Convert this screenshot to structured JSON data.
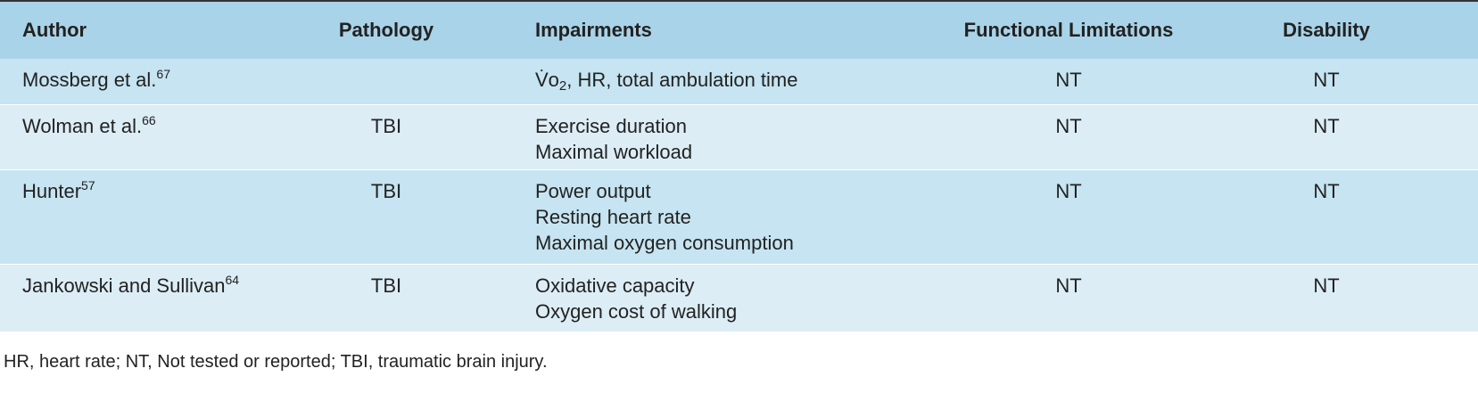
{
  "header": {
    "columns": [
      "Author",
      "Pathology",
      "Impairments",
      "Functional Limitations",
      "Disability"
    ]
  },
  "table": {
    "rows": [
      {
        "author": "Mossberg et al.",
        "ref": "67",
        "impairments": [
          [
            {
              "text": "V̇o"
            },
            {
              "text": "2",
              "sub": true
            },
            {
              "text": ", HR, total ambulation time"
            }
          ]
        ],
        "functional": "NT",
        "disability": "NT"
      },
      {
        "author": "Wolman et al.",
        "ref": "66",
        "pathology": "TBI",
        "impairments": [
          [
            {
              "text": "Exercise duration"
            }
          ],
          [
            {
              "text": "Maximal workload"
            }
          ]
        ],
        "functional": "NT",
        "disability": "NT"
      },
      {
        "author": "Hunter",
        "ref": "57",
        "pathology": "TBI",
        "impairments": [
          [
            {
              "text": "Power output"
            }
          ],
          [
            {
              "text": "Resting heart rate"
            }
          ],
          [
            {
              "text": "Maximal oxygen consumption"
            }
          ]
        ],
        "functional": "NT",
        "disability": "NT"
      },
      {
        "author": "Jankowski and Sullivan",
        "ref": "64",
        "pathology": "TBI",
        "impairments": [
          [
            {
              "text": "Oxidative capacity"
            }
          ],
          [
            {
              "text": "Oxygen cost of walking"
            }
          ]
        ],
        "functional": "NT",
        "disability": "NT"
      }
    ]
  },
  "footnote": "HR, heart rate; NT, Not tested or reported; TBI, traumatic brain injury."
}
